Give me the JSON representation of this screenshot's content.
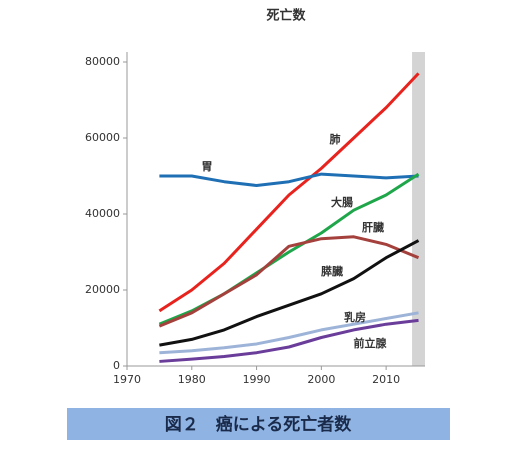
{
  "chart_data": {
    "type": "line",
    "title": "死亡数",
    "caption": "図２　癌による死亡者数",
    "x": [
      1975,
      1980,
      1985,
      1990,
      1995,
      2000,
      2005,
      2010,
      2015
    ],
    "series": [
      {
        "name": "肺",
        "color": "#e8231e",
        "values": [
          14500,
          20000,
          27000,
          36000,
          45000,
          52000,
          60000,
          68000,
          77000
        ]
      },
      {
        "name": "胃",
        "color": "#1f6fb5",
        "values": [
          50000,
          50000,
          48500,
          47500,
          48500,
          50500,
          50000,
          49500,
          50000
        ]
      },
      {
        "name": "大腸",
        "color": "#1fa64a",
        "values": [
          11000,
          14500,
          19000,
          24500,
          30000,
          35000,
          41000,
          45000,
          50500
        ]
      },
      {
        "name": "肝臓",
        "color": "#a5413d",
        "values": [
          10500,
          14000,
          19000,
          24000,
          31500,
          33500,
          34000,
          32000,
          28500
        ]
      },
      {
        "name": "膵臓",
        "color": "#111111",
        "values": [
          5500,
          7000,
          9500,
          13000,
          16000,
          19000,
          23000,
          28500,
          33000
        ]
      },
      {
        "name": "乳房",
        "color": "#9db4d8",
        "values": [
          3500,
          4000,
          4800,
          5800,
          7500,
          9500,
          11000,
          12500,
          14000
        ]
      },
      {
        "name": "前立腺",
        "color": "#6a3d9a",
        "values": [
          1200,
          1800,
          2500,
          3500,
          5000,
          7500,
          9500,
          11000,
          12000
        ]
      }
    ],
    "xlim": [
      1970,
      2016
    ],
    "xticks": [
      1970,
      1980,
      1990,
      2000,
      2010
    ],
    "ylim": [
      0,
      80000
    ],
    "yticks": [
      0,
      20000,
      40000,
      60000,
      80000
    ],
    "highlight_x": [
      2014,
      2016
    ],
    "grid": false
  }
}
